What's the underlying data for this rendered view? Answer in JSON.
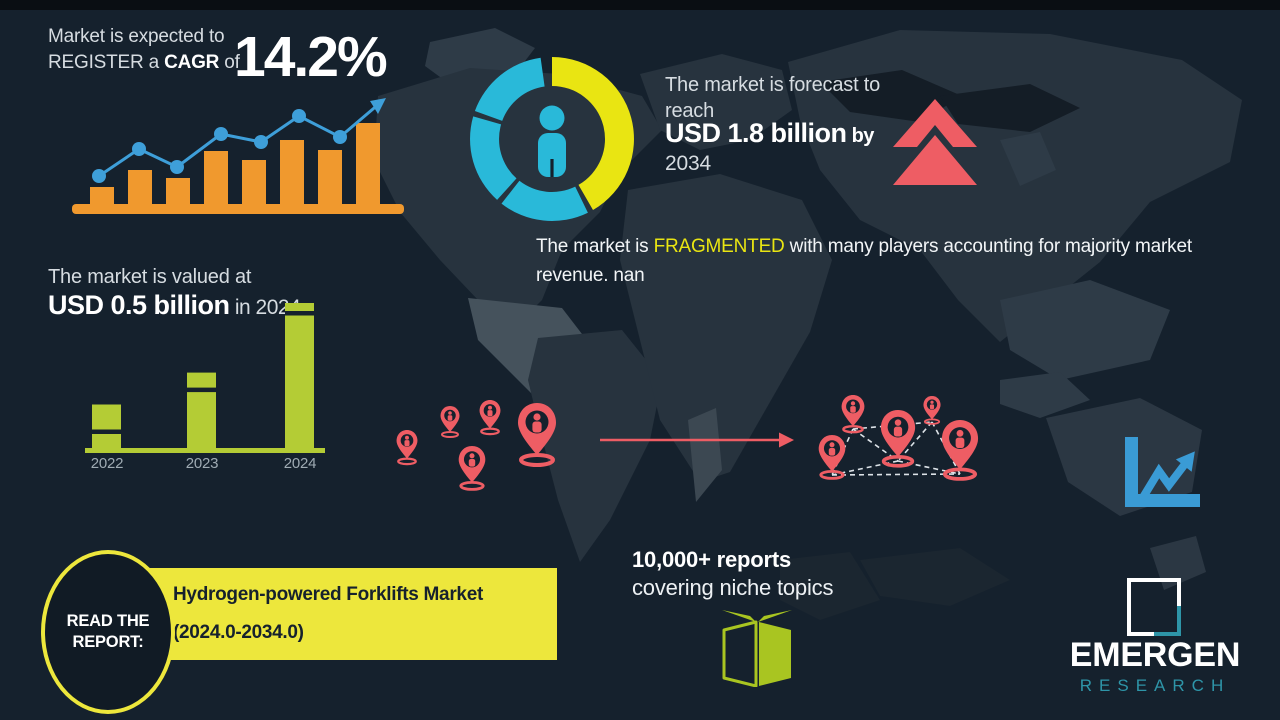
{
  "colors": {
    "background": "#15212D",
    "top_strip": "#0A0E13",
    "map": "#27333E",
    "map_dark": "#141D26",
    "map_light": "#2E3B47",
    "map_lighter": "#45525C",
    "orange": "#F0992E",
    "blue": "#3E9FD9",
    "cyan": "#29B9D9",
    "yellow": "#E9E512",
    "banner_yellow": "#EDE73C",
    "red": "#EE5D64",
    "green": "#B4CC35",
    "book_green": "#A9C521",
    "teal": "#2E95A8",
    "text_light": "#D6DCE1",
    "text_white": "#FFFFFF",
    "axis_label_gray": "#9FABB3",
    "dark_text": "#16212D"
  },
  "cagr": {
    "line1": "Market is expected to",
    "line2_prefix": "REGISTER a ",
    "line2_bold": "CAGR",
    "line2_suffix": " of",
    "value": "14.2%"
  },
  "forecast": {
    "line1": "The market is forecast to\nreach",
    "value": "USD 1.8 billion",
    "by": " by",
    "year": "2034"
  },
  "fragmented": {
    "prefix": "The market is ",
    "keyword": "FRAGMENTED",
    "suffix": " with many players accounting for majority market revenue. nan"
  },
  "valuation": {
    "line1": "The market is valued at",
    "value": "USD 0.5 billion",
    "suffix": " in 2024"
  },
  "reports": {
    "line1": "10,000+ reports",
    "line2": "covering niche topics"
  },
  "read_report": {
    "button": "READ THE REPORT:",
    "title": "Hydrogen-powered Forklifts Market (2024.0-2034.0)"
  },
  "logo": {
    "name": "EMERGEN",
    "sub": "RESEARCH"
  },
  "icons": [
    "growth-bar-chart-icon",
    "donut-person-icon",
    "double-up-arrow-icon",
    "location-pin-icon",
    "flow-arrow-icon",
    "trend-chart-icon",
    "open-book-icon",
    "logo-square-icon"
  ],
  "chart_data": [
    {
      "type": "bar",
      "name": "growth-trend-chart",
      "title": "decorative growth chart under CAGR 14.2%",
      "categories": [
        "1",
        "2",
        "3",
        "4",
        "5",
        "6",
        "7",
        "8"
      ],
      "values": [
        17,
        34,
        26,
        53,
        44,
        64,
        54,
        81
      ],
      "series": [
        {
          "name": "trend-line",
          "type": "line",
          "values": [
            28,
            55,
            37,
            70,
            62,
            88,
            67
          ]
        }
      ],
      "unit": "relative-height-px",
      "ylim": [
        0,
        100
      ],
      "colors": {
        "bar": "#F0992E",
        "line": "#3E9FD9"
      }
    },
    {
      "type": "pie",
      "name": "market-share-donut",
      "title": "decorative donut with person pictogram",
      "segments": [
        {
          "label": "yellow-segment",
          "sweep_deg": 150,
          "color": "#E9E512"
        },
        {
          "label": "cyan-segment-1",
          "sweep_deg": 64,
          "color": "#29B9D9"
        },
        {
          "label": "cyan-segment-2",
          "sweep_deg": 64,
          "color": "#29B9D9"
        },
        {
          "label": "cyan-segment-3",
          "sweep_deg": 62,
          "color": "#29B9D9"
        }
      ]
    },
    {
      "type": "bar",
      "name": "market-valuation-chart",
      "categories": [
        "2022",
        "2023",
        "2024"
      ],
      "values": [
        30,
        52,
        100
      ],
      "unit": "relative-height-percent",
      "annotation": "USD 0.5 billion in 2024",
      "color": "#B4CC35"
    }
  ]
}
